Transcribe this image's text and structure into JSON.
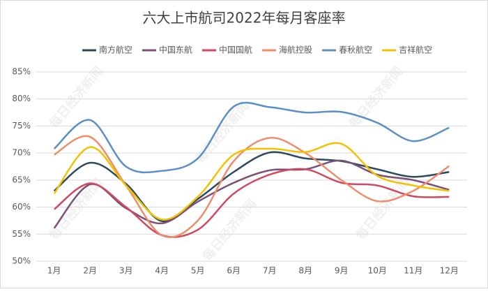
{
  "chart_data": {
    "type": "line",
    "title": "六大上市航司2022年每月客座率",
    "watermark": "每日经济新闻",
    "categories": [
      "1月",
      "2月",
      "3月",
      "4月",
      "5月",
      "6月",
      "7月",
      "8月",
      "9月",
      "10月",
      "11月",
      "12月"
    ],
    "series": [
      {
        "name": "南方航空",
        "color": "#2e4a62",
        "values": [
          63.0,
          68.2,
          64.3,
          57.4,
          61.5,
          66.5,
          70.1,
          69.0,
          68.5,
          67.0,
          65.6,
          66.5
        ]
      },
      {
        "name": "中国东航",
        "color": "#7b4f77",
        "values": [
          56.1,
          64.2,
          59.8,
          57.0,
          61.0,
          64.5,
          66.8,
          67.0,
          68.6,
          66.0,
          65.0,
          63.2
        ]
      },
      {
        "name": "中国国航",
        "color": "#d0495e",
        "values": [
          59.6,
          64.4,
          60.0,
          54.8,
          55.8,
          62.5,
          66.0,
          67.0,
          64.5,
          64.0,
          62.0,
          61.9
        ]
      },
      {
        "name": "海航控股",
        "color": "#ef8c6c",
        "values": [
          69.7,
          73.0,
          64.0,
          54.8,
          57.5,
          68.5,
          72.8,
          70.0,
          65.0,
          61.1,
          63.0,
          67.6
        ]
      },
      {
        "name": "春秋航空",
        "color": "#5b8fc7",
        "values": [
          70.8,
          76.1,
          67.5,
          66.7,
          69.0,
          78.6,
          78.5,
          77.5,
          77.6,
          75.6,
          72.2,
          74.7
        ]
      },
      {
        "name": "吉祥航空",
        "color": "#f2c200",
        "values": [
          62.5,
          71.1,
          64.0,
          57.7,
          61.9,
          69.7,
          70.8,
          70.2,
          71.7,
          65.8,
          64.0,
          63.0
        ]
      }
    ],
    "ylim": [
      50,
      85
    ],
    "yticks": [
      {
        "value": 50,
        "label": "50%"
      },
      {
        "value": 55,
        "label": "55%"
      },
      {
        "value": 60,
        "label": "60%"
      },
      {
        "value": 65,
        "label": "65%"
      },
      {
        "value": 70,
        "label": "70%"
      },
      {
        "value": 75,
        "label": "75%"
      },
      {
        "value": 80,
        "label": "80%"
      },
      {
        "value": 85,
        "label": "85%"
      }
    ],
    "grid": true,
    "legend": "top"
  }
}
